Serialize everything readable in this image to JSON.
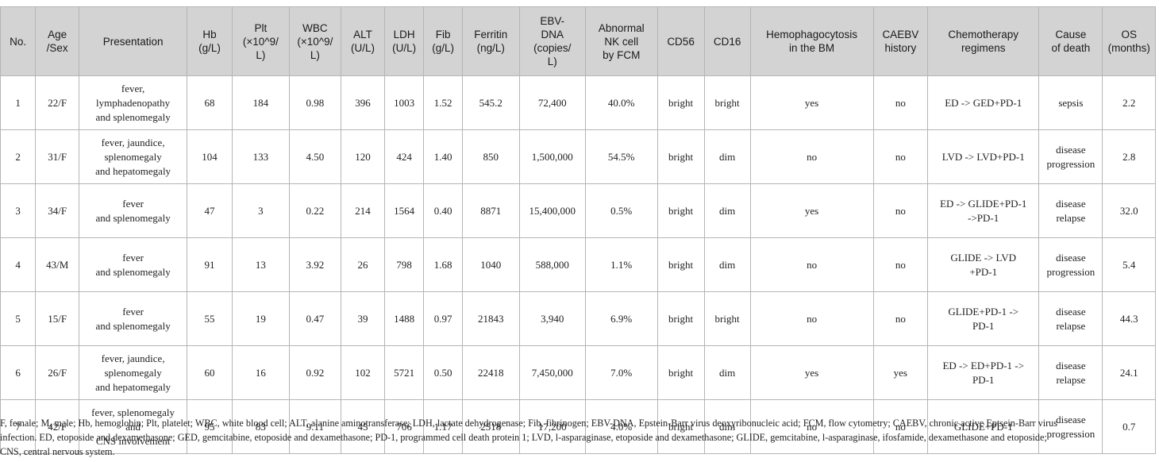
{
  "table": {
    "headers": [
      "No.",
      "Age\n/Sex",
      "Presentation",
      "Hb\n(g/L)",
      "Plt\n(×10^9/\nL)",
      "WBC\n(×10^9/\nL)",
      "ALT\n(U/L)",
      "LDH\n(U/L)",
      "Fib\n(g/L)",
      "Ferritin\n(ng/L)",
      "EBV-\nDNA\n(copies/\nL)",
      "Abnormal\nNK cell\nby FCM",
      "CD56",
      "CD16",
      "Hemophagocytosis\nin the BM",
      "CAEBV\nhistory",
      "Chemotherapy\nregimens",
      "Cause\nof death",
      "OS\n(months)"
    ],
    "rows": [
      [
        "1",
        "22/F",
        "fever,\nlymphadenopathy\nand splenomegaly",
        "68",
        "184",
        "0.98",
        "396",
        "1003",
        "1.52",
        "545.2",
        "72,400",
        "40.0%",
        "bright",
        "bright",
        "yes",
        "no",
        "ED -> GED+PD-1",
        "sepsis",
        "2.2"
      ],
      [
        "2",
        "31/F",
        "fever, jaundice,\nsplenomegaly\nand hepatomegaly",
        "104",
        "133",
        "4.50",
        "120",
        "424",
        "1.40",
        "850",
        "1,500,000",
        "54.5%",
        "bright",
        "dim",
        "no",
        "no",
        "LVD -> LVD+PD-1",
        "disease\nprogression",
        "2.8"
      ],
      [
        "3",
        "34/F",
        "fever\nand splenomegaly",
        "47",
        "3",
        "0.22",
        "214",
        "1564",
        "0.40",
        "8871",
        "15,400,000",
        "0.5%",
        "bright",
        "dim",
        "yes",
        "no",
        "ED -> GLIDE+PD-1\n->PD-1",
        "disease\nrelapse",
        "32.0"
      ],
      [
        "4",
        "43/M",
        "fever\nand splenomegaly",
        "91",
        "13",
        "3.92",
        "26",
        "798",
        "1.68",
        "1040",
        "588,000",
        "1.1%",
        "bright",
        "dim",
        "no",
        "no",
        "GLIDE -> LVD\n+PD-1",
        "disease\nprogression",
        "5.4"
      ],
      [
        "5",
        "15/F",
        "fever\nand splenomegaly",
        "55",
        "19",
        "0.47",
        "39",
        "1488",
        "0.97",
        "21843",
        "3,940",
        "6.9%",
        "bright",
        "bright",
        "no",
        "no",
        "GLIDE+PD-1 ->\nPD-1",
        "disease\nrelapse",
        "44.3"
      ],
      [
        "6",
        "26/F",
        "fever, jaundice,\nsplenomegaly\nand hepatomegaly",
        "60",
        "16",
        "0.92",
        "102",
        "5721",
        "0.50",
        "22418",
        "7,450,000",
        "7.0%",
        "bright",
        "dim",
        "yes",
        "yes",
        "ED -> ED+PD-1 ->\nPD-1",
        "disease\nrelapse",
        "24.1"
      ],
      [
        "7",
        "42/F",
        "fever, splenomegaly\nand\nCNS involvement",
        "95",
        "83",
        "9.11",
        "45",
        "706",
        "1.17",
        "2518",
        "17,200",
        "4.0%",
        "bright",
        "dim",
        "no",
        "no",
        "GLIDE+PD-1",
        "disease\nprogression",
        "0.7"
      ]
    ]
  },
  "footnote": {
    "line1": "F, female; M, male; Hb, hemoglobin; Plt, platelet; WBC, white blood cell; ALT, alanine aminotransferase; LDH, lactate dehydrogenase; Fib, fibrinogen; EBV-DNA, Epstein-Barr virus deoxyribonucleic acid; FCM, flow cytometry; CAEBV, chronic active Eptsein-Barr virus",
    "line2": "infection. ED, etoposide and dexamethasone; GED, gemcitabine, etoposide and dexamethasone; PD-1, programmed cell death protein 1; LVD, l-asparaginase, etoposide and dexamethasone; GLIDE, gemcitabine, l-asparaginase, ifosfamide, dexamethasone and etoposide;",
    "line3": "CNS, central nervous system."
  }
}
